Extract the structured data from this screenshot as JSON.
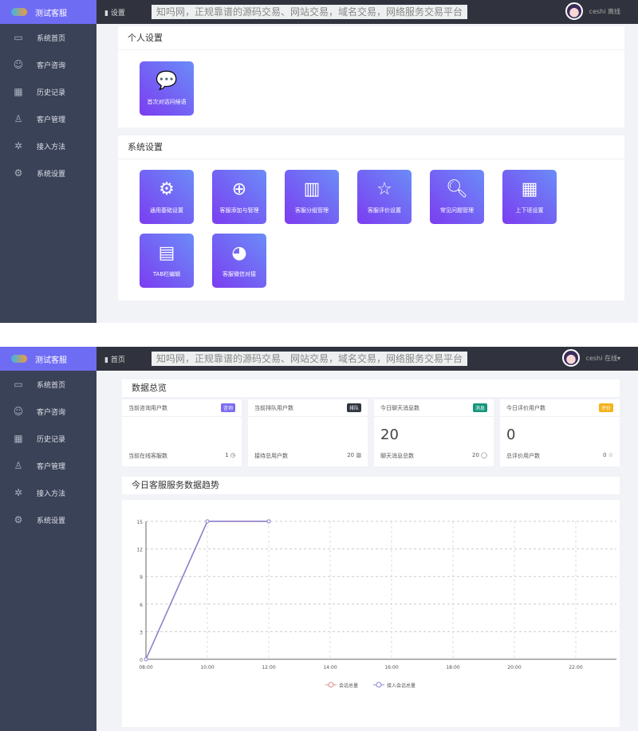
{
  "watermark": "知吗网，正规靠谱的源码交易、网站交易，域名交易，网络服务交易平台",
  "brand": "测试客服",
  "nav": [
    {
      "label": "系统首页",
      "icon": "window-icon",
      "glyph": "▭"
    },
    {
      "label": "客户咨询",
      "icon": "smile-icon",
      "glyph": "☺"
    },
    {
      "label": "历史记录",
      "icon": "calendar-icon",
      "glyph": "▦"
    },
    {
      "label": "客户管理",
      "icon": "user-icon",
      "glyph": "♙"
    },
    {
      "label": "接入方法",
      "icon": "puzzle-icon",
      "glyph": "✲"
    },
    {
      "label": "系统设置",
      "icon": "gear-icon",
      "glyph": "⚙"
    }
  ],
  "settings_page": {
    "breadcrumb": "设置",
    "user": "ceshi 离线",
    "personal_title": "个人设置",
    "personal": [
      {
        "label": "首次对话问候语",
        "icon": "chat-bubbles-icon",
        "glyph": "💬"
      }
    ],
    "system_title": "系统设置",
    "system": [
      {
        "label": "通用基础设置",
        "icon": "gear-icon",
        "glyph": "⚙"
      },
      {
        "label": "客服添加与管理",
        "icon": "plus-circle-icon",
        "glyph": "⊕"
      },
      {
        "label": "客服分组管理",
        "icon": "group-icon",
        "glyph": "▥"
      },
      {
        "label": "客服评价设置",
        "icon": "star-icon",
        "glyph": "☆"
      },
      {
        "label": "常见问题管理",
        "icon": "search-icon",
        "glyph": "🔍︎"
      },
      {
        "label": "上下班设置",
        "icon": "calendar-icon",
        "glyph": "▦"
      },
      {
        "label": "TAB栏编辑",
        "icon": "layout-icon",
        "glyph": "▤"
      },
      {
        "label": "客服微信对接",
        "icon": "wechat-icon",
        "glyph": "◕"
      }
    ]
  },
  "home_page": {
    "breadcrumb": "首页",
    "user": "ceshi 在线▾",
    "overview_title": "数据总览",
    "stats": [
      {
        "title": "当前咨询用户数",
        "tag": "咨询",
        "tag_color": "#7b6cf0",
        "value": "",
        "foot": "当前在线客服数",
        "foot_value": "1",
        "foot_icon": "clock-icon",
        "glyph": "◷"
      },
      {
        "title": "当前排队用户数",
        "tag": "排队",
        "tag_color": "#2f3440",
        "value": "",
        "foot": "接待总用户数",
        "foot_value": "20",
        "foot_icon": "users-icon",
        "glyph": "▥"
      },
      {
        "title": "今日聊天消息数",
        "tag": "消息",
        "tag_color": "#14967e",
        "value": "20",
        "foot": "聊天消息总数",
        "foot_value": "20",
        "foot_icon": "bell-icon",
        "glyph": "◯"
      },
      {
        "title": "今日评价用户数",
        "tag": "评价",
        "tag_color": "#f5b31d",
        "value": "0",
        "foot": "总评价用户数",
        "foot_value": "0",
        "foot_icon": "star-icon",
        "glyph": "☆"
      }
    ],
    "trend_title": "今日客服服务数据趋势"
  },
  "chart_data": {
    "type": "line",
    "x": [
      "08:00",
      "10:00",
      "12:00"
    ],
    "xticks": [
      "08:00",
      "10:00",
      "12:00",
      "14:00",
      "16:00",
      "18:00",
      "20:00",
      "22:00"
    ],
    "yticks": [
      0,
      3,
      6,
      9,
      12,
      15
    ],
    "ylim": [
      0,
      15
    ],
    "grid": true,
    "legend": "bottom",
    "series": [
      {
        "name": "会话总量",
        "color": "#e08a8a",
        "values": [
          0,
          15,
          15
        ]
      },
      {
        "name": "接入会话总量",
        "color": "#8a84d6",
        "values": [
          0,
          15,
          15
        ]
      }
    ]
  }
}
